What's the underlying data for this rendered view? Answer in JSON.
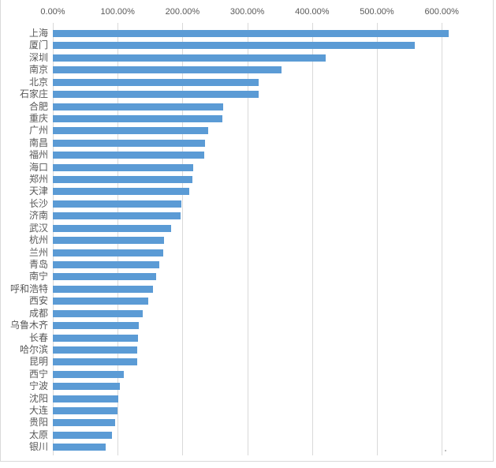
{
  "chart_data": {
    "type": "bar",
    "orientation": "horizontal",
    "categories": [
      "上海",
      "厦门",
      "深圳",
      "南京",
      "北京",
      "石家庄",
      "合肥",
      "重庆",
      "广州",
      "南昌",
      "福州",
      "海口",
      "郑州",
      "天津",
      "长沙",
      "济南",
      "武汉",
      "杭州",
      "兰州",
      "青岛",
      "南宁",
      "呼和浩特",
      "西安",
      "成都",
      "乌鲁木齐",
      "长春",
      "哈尔滨",
      "昆明",
      "西宁",
      "宁波",
      "沈阳",
      "大连",
      "贵阳",
      "太原",
      "银川"
    ],
    "values": [
      610.5,
      558.4,
      420.6,
      352.8,
      317.0,
      316.9,
      263.1,
      261.2,
      240.0,
      234.8,
      233.2,
      216.9,
      215.3,
      210.5,
      197.9,
      196.7,
      182.5,
      171.9,
      170.3,
      164.2,
      159.0,
      154.5,
      147.6,
      138.7,
      132.0,
      131.4,
      130.6,
      130.4,
      109.9,
      103.4,
      100.6,
      100.1,
      95.7,
      91.6,
      81.9
    ],
    "value_unit": "%",
    "x_tick_labels": [
      "0.00%",
      "100.00%",
      "200.00%",
      "300.00%",
      "400.00%",
      "500.00%",
      "600.00%"
    ],
    "x_tick_values": [
      0,
      100,
      200,
      300,
      400,
      500,
      600
    ],
    "xlim": [
      0,
      676
    ],
    "grid": "vertical-major",
    "legend": "none",
    "axis_position": "top",
    "bar_color": "#5b9bd5",
    "gridline_color": "#d9d9d9",
    "axis_text_color": "#595959",
    "frame_color": "#d9d9d9",
    "background_color": "#ffffff"
  }
}
